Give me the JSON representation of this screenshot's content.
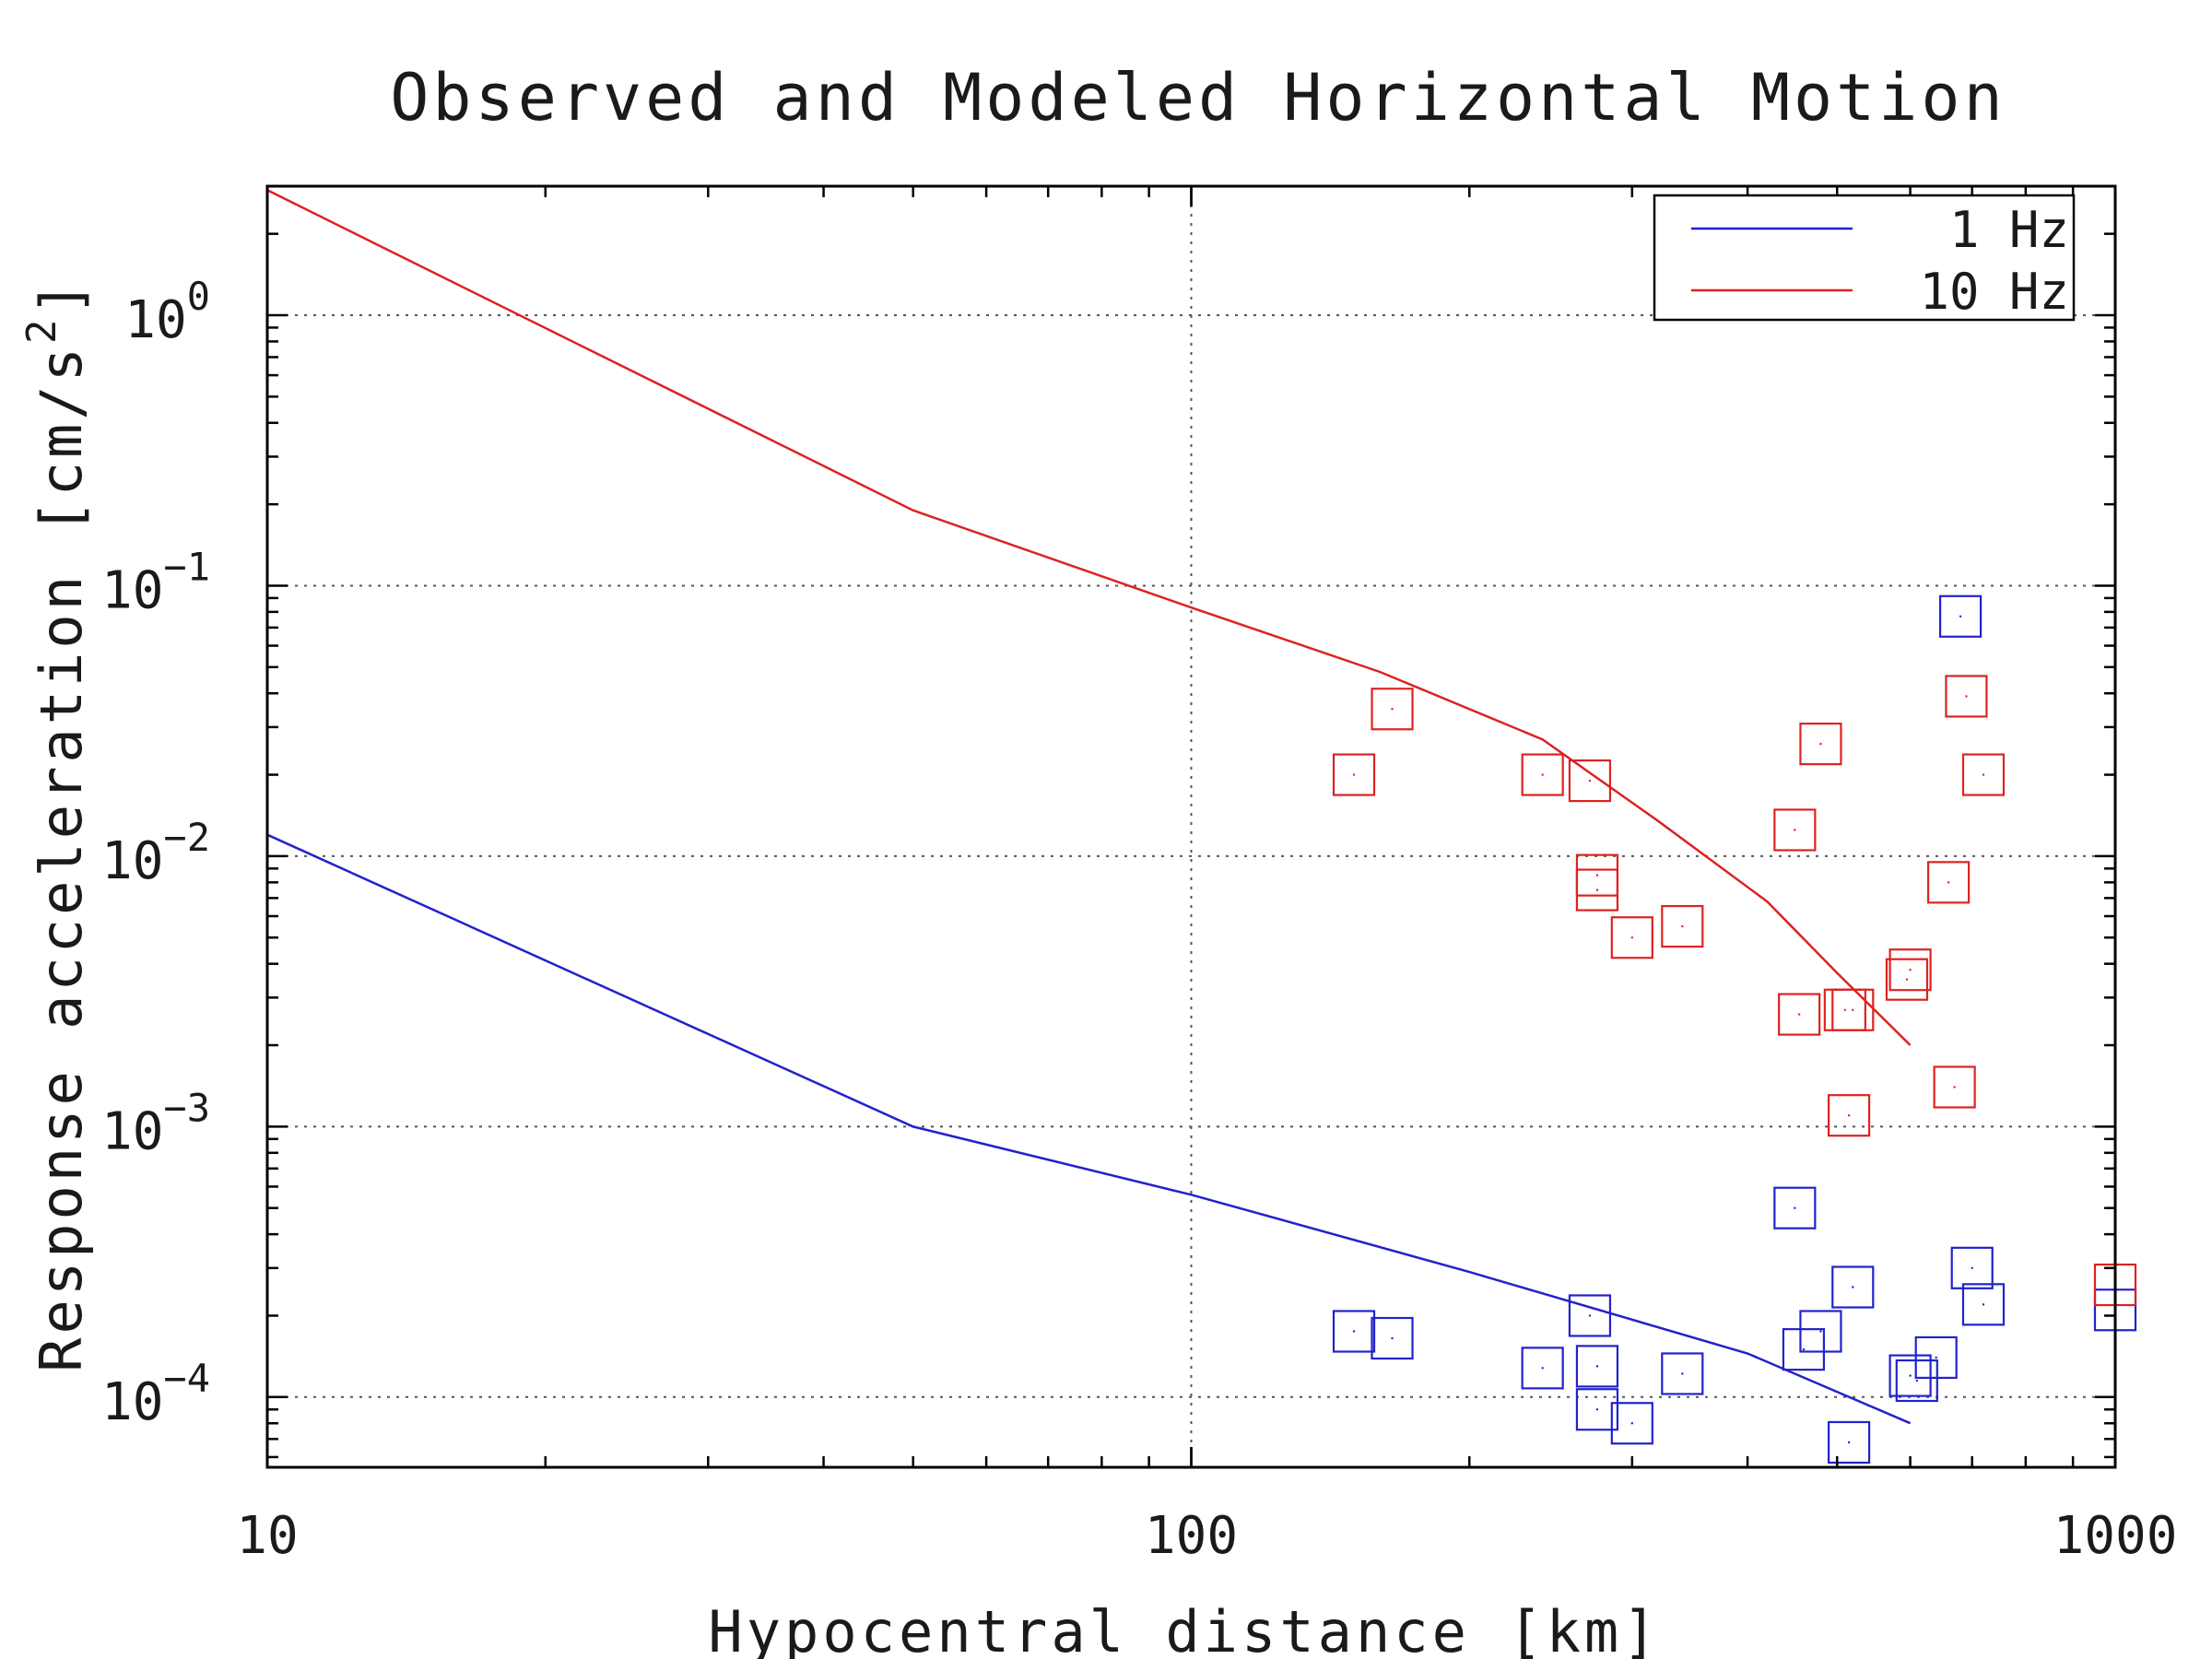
{
  "chart_data": {
    "type": "scatter",
    "title": "Observed and Modeled Horizontal Motion",
    "xlabel": "Hypocentral distance [km]",
    "ylabel": "Response acceleration [cm/s^2]",
    "ylabel_parts": {
      "main": "Response acceleration [cm/s",
      "sup": "2",
      "close": "]"
    },
    "xscale": "log",
    "yscale": "log",
    "xlim": [
      10,
      1000
    ],
    "ylim": [
      5.5e-05,
      3.0
    ],
    "grid": true,
    "legend_position": "top-right",
    "x_ticks": [
      {
        "value": 10,
        "label": "10"
      },
      {
        "value": 100,
        "label": "100"
      },
      {
        "value": 1000,
        "label": "1000"
      }
    ],
    "y_ticks": [
      {
        "value": 1,
        "base": "10",
        "exp": "0"
      },
      {
        "value": 0.1,
        "base": "10",
        "exp": "−1"
      },
      {
        "value": 0.01,
        "base": "10",
        "exp": "−2"
      },
      {
        "value": 0.001,
        "base": "10",
        "exp": "−3"
      },
      {
        "value": 0.0001,
        "base": "10",
        "exp": "−4"
      }
    ],
    "series": [
      {
        "name": "1 Hz",
        "color": "#2222cc",
        "line": {
          "x": [
            10,
            50,
            100,
            200,
            400,
            600
          ],
          "y": [
            0.012,
            0.001,
            0.00056,
            0.00029,
            0.000145,
            8e-05
          ]
        },
        "points": {
          "x": [
            150,
            165,
            240,
            270,
            275,
            275,
            300,
            340,
            450,
            460,
            480,
            515,
            520,
            600,
            610,
            640,
            680,
            700,
            720,
            1000
          ],
          "y": [
            0.000175,
            0.000165,
            0.000128,
            0.0002,
            9e-05,
            0.00013,
            8e-05,
            0.000122,
            0.0005,
            0.00015,
            0.000175,
            6.8e-05,
            0.000255,
            0.00012,
            0.000115,
            0.00014,
            0.077,
            0.0003,
            0.00022,
            0.00021
          ]
        }
      },
      {
        "name": "10 Hz",
        "color": "#dd2222",
        "line": {
          "x": [
            10,
            50,
            100,
            160,
            240,
            320,
            420,
            500,
            600
          ],
          "y": [
            2.9,
            0.19,
            0.083,
            0.048,
            0.027,
            0.0135,
            0.0068,
            0.0037,
            0.002
          ]
        },
        "points": {
          "x": [
            150,
            165,
            240,
            270,
            275,
            275,
            300,
            340,
            450,
            455,
            480,
            510,
            515,
            520,
            595,
            600,
            660,
            670,
            690,
            720,
            1000
          ],
          "y": [
            0.02,
            0.035,
            0.02,
            0.019,
            0.0075,
            0.0085,
            0.005,
            0.0055,
            0.0125,
            0.0026,
            0.026,
            0.0027,
            0.0011,
            0.0027,
            0.0035,
            0.0038,
            0.008,
            0.0014,
            0.039,
            0.02,
            0.00026
          ]
        }
      }
    ]
  }
}
